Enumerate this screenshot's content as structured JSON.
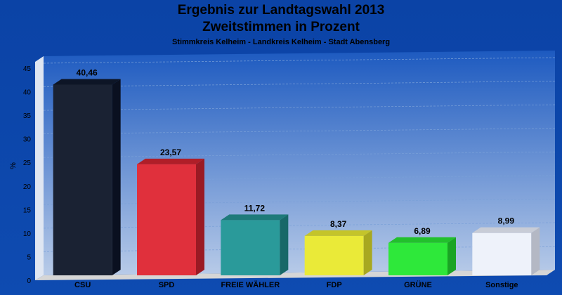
{
  "chart_data": {
    "type": "bar",
    "title": "Ergebnis zur Landtagswahl 2013",
    "subtitle": "Zweitstimmen in Prozent",
    "subsubtitle": "Stimmkreis Kelheim - Landkreis Kelheim - Stadt Abensberg",
    "ylabel": "%",
    "ylim": [
      0,
      45
    ],
    "yticks": [
      0,
      5,
      10,
      15,
      20,
      25,
      30,
      35,
      40,
      45
    ],
    "grid": true,
    "categories": [
      "CSU",
      "SPD",
      "FREIE WÄHLER",
      "FDP",
      "GRÜNE",
      "Sonstige"
    ],
    "values": [
      40.46,
      23.57,
      11.72,
      8.37,
      6.89,
      8.99
    ],
    "value_labels": [
      "40,46",
      "23,57",
      "11,72",
      "8,37",
      "6,89",
      "8,99"
    ],
    "colors": [
      {
        "front": "#1a2233",
        "top": "#0d1526",
        "side": "#0a1020"
      },
      {
        "front": "#e0303c",
        "top": "#b01e28",
        "side": "#9a1a24"
      },
      {
        "front": "#2a9a9a",
        "top": "#1e7a7a",
        "side": "#176868"
      },
      {
        "front": "#eaea38",
        "top": "#c4c42a",
        "side": "#a8a820"
      },
      {
        "front": "#2ee83a",
        "top": "#22c02c",
        "side": "#1aa424"
      },
      {
        "front": "#eef2fa",
        "top": "#c8ccd6",
        "side": "#b4b8c4"
      }
    ]
  }
}
